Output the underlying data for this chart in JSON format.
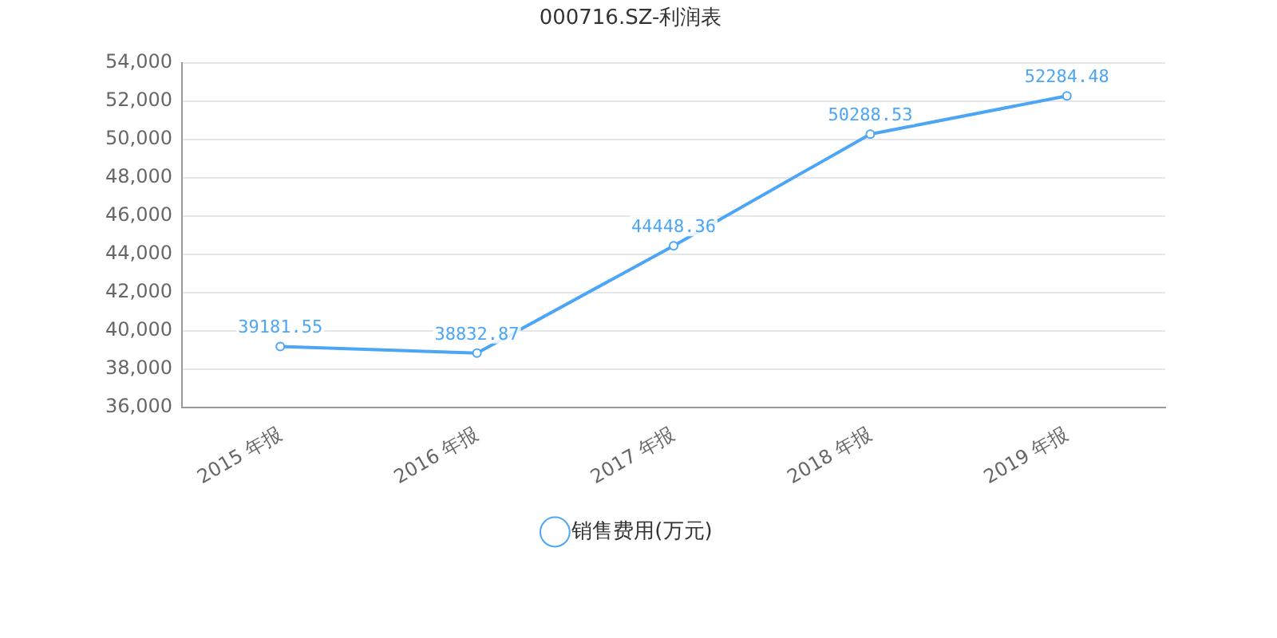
{
  "chart_data": {
    "type": "line",
    "title": "000716.SZ-利润表",
    "categories": [
      "2015 年报",
      "2016 年报",
      "2017 年报",
      "2018 年报",
      "2019 年报"
    ],
    "series": [
      {
        "name": "销售费用(万元)",
        "color": "#4da6f5",
        "values": [
          39181.55,
          38832.87,
          44448.36,
          50288.53,
          52284.48
        ]
      }
    ],
    "ylim": [
      36000,
      54000
    ],
    "yticks": [
      {
        "value": 36000,
        "label": "36,000"
      },
      {
        "value": 38000,
        "label": "38,000"
      },
      {
        "value": 40000,
        "label": "40,000"
      },
      {
        "value": 42000,
        "label": "42,000"
      },
      {
        "value": 44000,
        "label": "44,000"
      },
      {
        "value": 46000,
        "label": "46,000"
      },
      {
        "value": 48000,
        "label": "48,000"
      },
      {
        "value": 50000,
        "label": "50,000"
      },
      {
        "value": 52000,
        "label": "52,000"
      },
      {
        "value": 54000,
        "label": "54,000"
      }
    ],
    "grid": "y",
    "legend": "bottom",
    "marker": "circle",
    "line_style": "solid",
    "data_labels": true
  }
}
